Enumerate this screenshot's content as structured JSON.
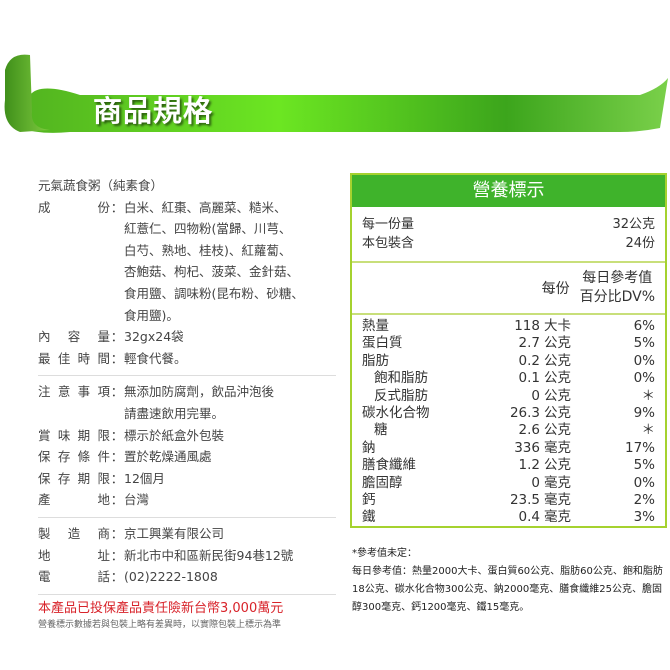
{
  "banner": {
    "title": "商品規格",
    "color": "#5ccc22"
  },
  "product": {
    "title": "元氣蔬食粥（純素食）",
    "ingredients_label": "成份",
    "ingredients": [
      "白米、紅棗、高麗菜、糙米、",
      "紅薏仁、四物粉(當歸、川芎、",
      "白芍、熟地、桂枝)、紅蘿蔔、",
      "杏鮑菇、枸杞、菠菜、金針菇、",
      "食用鹽、調味粉(昆布粉、砂糖、",
      "食用鹽)。"
    ],
    "content_label": "內容量",
    "content": "32gx24袋",
    "best_label": "最佳時間",
    "best": "輕食代餐。",
    "notice_label": "注意事項",
    "notice": [
      "無添加防腐劑，飲品沖泡後",
      "請盡速飲用完畢。"
    ],
    "expiry_label": "賞味期限",
    "expiry": "標示於紙盒外包裝",
    "storage_label": "保存條件",
    "storage": "置於乾燥通風處",
    "shelf_label": "保存期限",
    "shelf": "12個月",
    "origin_label": "產地",
    "origin": "台灣",
    "maker_label": "製造商",
    "maker": "京工興業有限公司",
    "address_label": "地址",
    "address": "新北市中和區新民街94巷12號",
    "phone_label": "電話",
    "phone": "(02)2222-1808",
    "insurance": "本產品已投保產品責任險新台幣3,000萬元",
    "disclaimer": "營養標示數據若與包裝上略有差異時，以實際包裝上標示為準"
  },
  "nutrition": {
    "title": "營養標示",
    "header_color": "#3fb32b",
    "serving_label": "每一份量",
    "serving": "32公克",
    "pack_label": "本包裝含",
    "pack": "24份",
    "per_label": "每份",
    "dv_label1": "每日參考值",
    "dv_label2": "百分比DV%",
    "rows": [
      {
        "name": "熱量",
        "amount": "118",
        "unit": "大卡",
        "dv": "6%"
      },
      {
        "name": "蛋白質",
        "amount": "2.7",
        "unit": "公克",
        "dv": "5%"
      },
      {
        "name": "脂肪",
        "amount": "0.2",
        "unit": "公克",
        "dv": "0%"
      },
      {
        "name": "飽和脂肪",
        "amount": "0.1",
        "unit": "公克",
        "dv": "0%",
        "sub": true
      },
      {
        "name": "反式脂肪",
        "amount": "0",
        "unit": "公克",
        "dv": "＊",
        "sub": true
      },
      {
        "name": "碳水化合物",
        "amount": "26.3",
        "unit": "公克",
        "dv": "9%"
      },
      {
        "name": "糖",
        "amount": "2.6",
        "unit": "公克",
        "dv": "＊",
        "sub": true
      },
      {
        "name": "鈉",
        "amount": "336",
        "unit": "毫克",
        "dv": "17%"
      },
      {
        "name": "膳食纖維",
        "amount": "1.2",
        "unit": "公克",
        "dv": "5%"
      },
      {
        "name": "膽固醇",
        "amount": "0",
        "unit": "毫克",
        "dv": "0%"
      },
      {
        "name": "鈣",
        "amount": "23.5",
        "unit": "毫克",
        "dv": "2%"
      },
      {
        "name": "鐵",
        "amount": "0.4",
        "unit": "毫克",
        "dv": "3%"
      }
    ],
    "note_title": "*參考值未定：",
    "note": "每日參考值：熱量2000大卡、蛋白質60公克、脂肪60公克、飽和脂肪18公克、碳水化合物300公克、鈉2000毫克、膳食纖維25公克、膽固醇300毫克、鈣1200毫克、鐵15毫克。"
  }
}
